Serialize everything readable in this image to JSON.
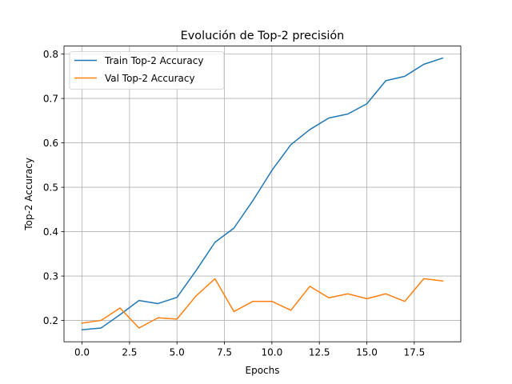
{
  "chart_data": {
    "type": "line",
    "title": "Evolución de Top-2 precisión",
    "xlabel": "Epochs",
    "ylabel": "Top-2 Accuracy",
    "xlim": [
      -0.95,
      19.95
    ],
    "ylim": [
      0.152,
      0.818
    ],
    "xticks": [
      0,
      2.5,
      5,
      7.5,
      10,
      12.5,
      15,
      17.5
    ],
    "xtick_labels": [
      "0.0",
      "2.5",
      "5.0",
      "7.5",
      "10.0",
      "12.5",
      "15.0",
      "17.5"
    ],
    "yticks": [
      0.2,
      0.3,
      0.4,
      0.5,
      0.6,
      0.7,
      0.8
    ],
    "ytick_labels": [
      "0.2",
      "0.3",
      "0.4",
      "0.5",
      "0.6",
      "0.7",
      "0.8"
    ],
    "grid": true,
    "legend_position": "upper-left",
    "x": [
      0,
      1,
      2,
      3,
      4,
      5,
      6,
      7,
      8,
      9,
      10,
      11,
      12,
      13,
      14,
      15,
      16,
      17,
      18,
      19
    ],
    "series": [
      {
        "name": "Train Top-2 Accuracy",
        "color": "#1f77b4",
        "values": [
          0.179,
          0.183,
          0.213,
          0.245,
          0.238,
          0.252,
          0.312,
          0.376,
          0.408,
          0.47,
          0.538,
          0.596,
          0.63,
          0.656,
          0.665,
          0.688,
          0.74,
          0.75,
          0.777,
          0.791
        ]
      },
      {
        "name": "Val Top-2 Accuracy",
        "color": "#ff7f0e",
        "values": [
          0.194,
          0.2,
          0.228,
          0.183,
          0.206,
          0.203,
          0.255,
          0.294,
          0.22,
          0.243,
          0.243,
          0.223,
          0.277,
          0.251,
          0.26,
          0.249,
          0.26,
          0.243,
          0.294,
          0.289
        ]
      }
    ]
  }
}
